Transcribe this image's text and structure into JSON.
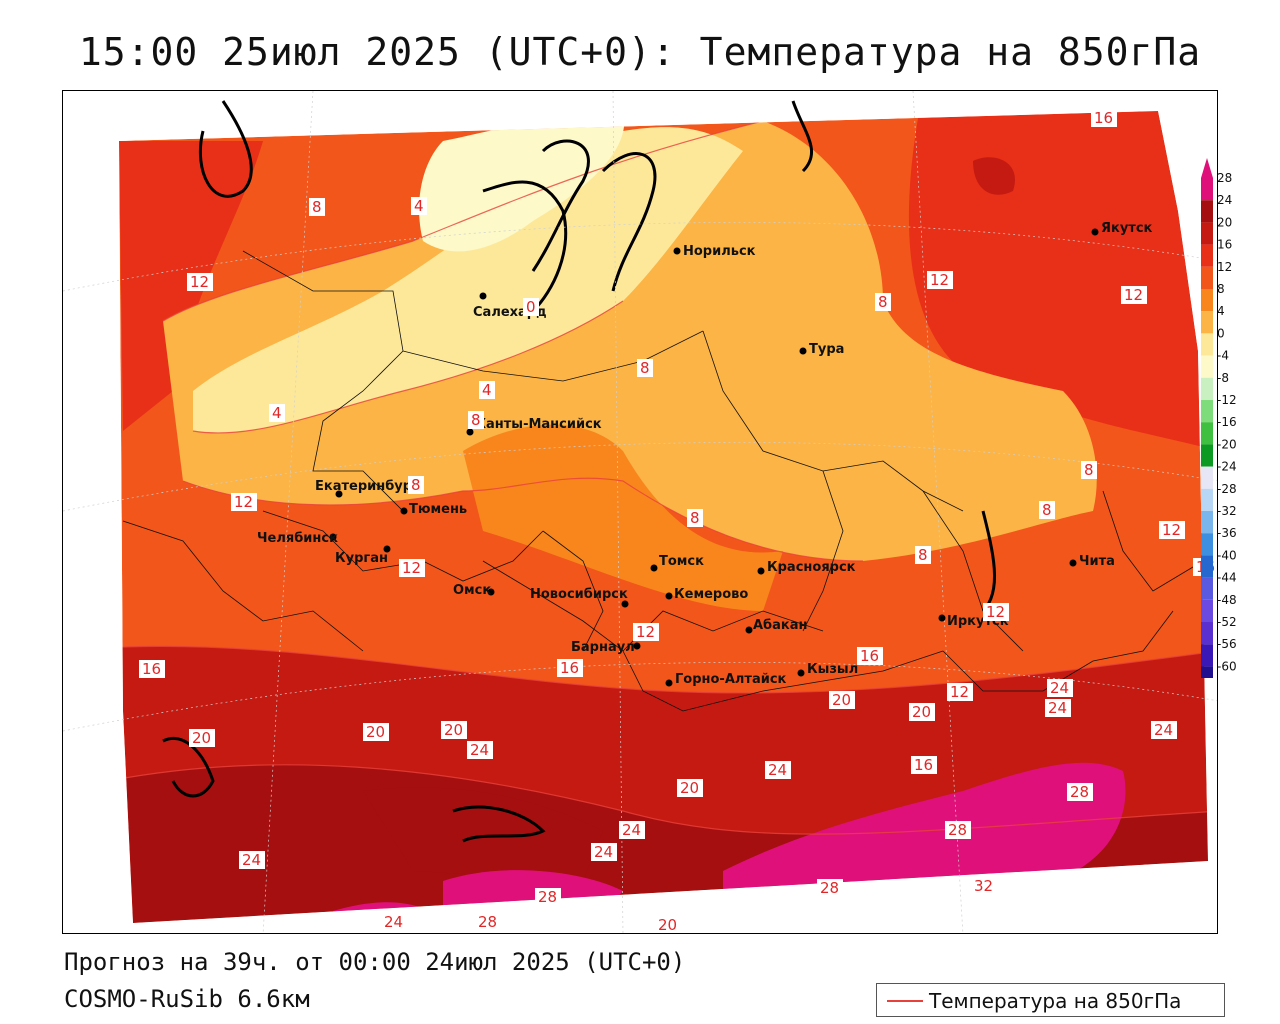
{
  "header": {
    "title": "15:00 25июл 2025 (UTC+0): Температура на 850гПа"
  },
  "footer": {
    "forecast": "Прогноз на 39ч. от 00:00 24июл 2025 (UTC+0)",
    "model": "COSMO-RuSib 6.6км"
  },
  "legend": {
    "label": "Температура на 850гПа",
    "line_color": "#e8413c"
  },
  "color_scale": {
    "ticks": [
      "28",
      "24",
      "20",
      "16",
      "12",
      "8",
      "4",
      "0",
      "-4",
      "-8",
      "-12",
      "-16",
      "-20",
      "-24",
      "-28",
      "-32",
      "-36",
      "-40",
      "-44",
      "-48",
      "-52",
      "-56",
      "-60"
    ],
    "colors": [
      "#e0107a",
      "#a50f0f",
      "#c41a12",
      "#e83018",
      "#f2561a",
      "#f8861d",
      "#fbb445",
      "#fde89a",
      "#fdf9c8",
      "#c8f0c0",
      "#7fdc7a",
      "#40c040",
      "#0c9a22",
      "#e6e6f6",
      "#b8d6f5",
      "#7ab6ec",
      "#3d8fe0",
      "#2468d0",
      "#5a5ae0",
      "#6a4ae0",
      "#5a30d0",
      "#3a18b8",
      "#201090"
    ]
  },
  "cities": [
    {
      "name": "Норильск"
    },
    {
      "name": "Якутск"
    },
    {
      "name": "Салехард"
    },
    {
      "name": "Тура"
    },
    {
      "name": "Ханты-Мансийск"
    },
    {
      "name": "Екатеринбург"
    },
    {
      "name": "Тюмень"
    },
    {
      "name": "Челябинск"
    },
    {
      "name": "Курган"
    },
    {
      "name": "Омск"
    },
    {
      "name": "Новосибирск"
    },
    {
      "name": "Томск"
    },
    {
      "name": "Кемерово"
    },
    {
      "name": "Красноярск"
    },
    {
      "name": "Абакан"
    },
    {
      "name": "Барнаул"
    },
    {
      "name": "Горно-Алтайск"
    },
    {
      "name": "Кызыл"
    },
    {
      "name": "Иркутск"
    },
    {
      "name": "Чита"
    }
  ],
  "isotherm_labels": [
    "16",
    "12",
    "12",
    "12",
    "8",
    "8",
    "8",
    "8",
    "8",
    "8",
    "8",
    "8",
    "8",
    "4",
    "4",
    "4",
    "0",
    "12",
    "12",
    "12",
    "12",
    "12",
    "12",
    "16",
    "16",
    "16",
    "16",
    "20",
    "20",
    "20",
    "24",
    "20",
    "24",
    "24",
    "24",
    "24",
    "24",
    "28",
    "28",
    "28",
    "28",
    "32",
    "20",
    "20",
    "24",
    "16",
    "20",
    "24",
    "24",
    "28"
  ]
}
